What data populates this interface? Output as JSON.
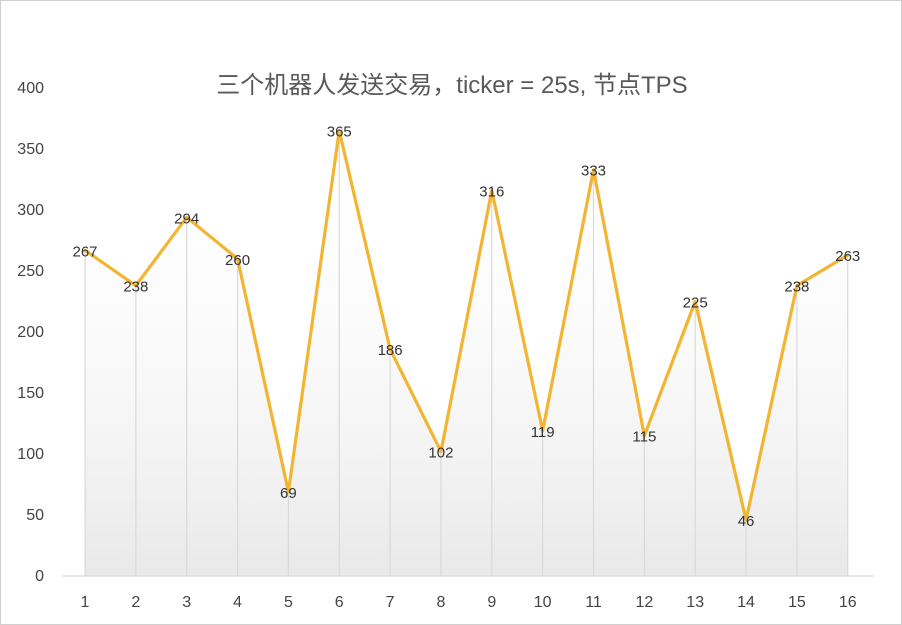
{
  "chart_data": {
    "type": "line",
    "title": "三个机器人发送交易，ticker = 25s, 节点TPS",
    "xlabel": "",
    "ylabel": "",
    "categories": [
      "1",
      "2",
      "3",
      "4",
      "5",
      "6",
      "7",
      "8",
      "9",
      "10",
      "11",
      "12",
      "13",
      "14",
      "15",
      "16"
    ],
    "series": [
      {
        "values": [
          267,
          238,
          294,
          260,
          69,
          365,
          186,
          102,
          316,
          119,
          333,
          115,
          225,
          46,
          238,
          263
        ],
        "color": "#F3B531"
      }
    ],
    "ylim": [
      0,
      400
    ],
    "yticks": [
      0,
      50,
      100,
      150,
      200,
      250,
      300,
      350,
      400
    ],
    "data_labels": true,
    "grid": "vertical drop lines with gradient fill below curve",
    "legend": "none"
  }
}
